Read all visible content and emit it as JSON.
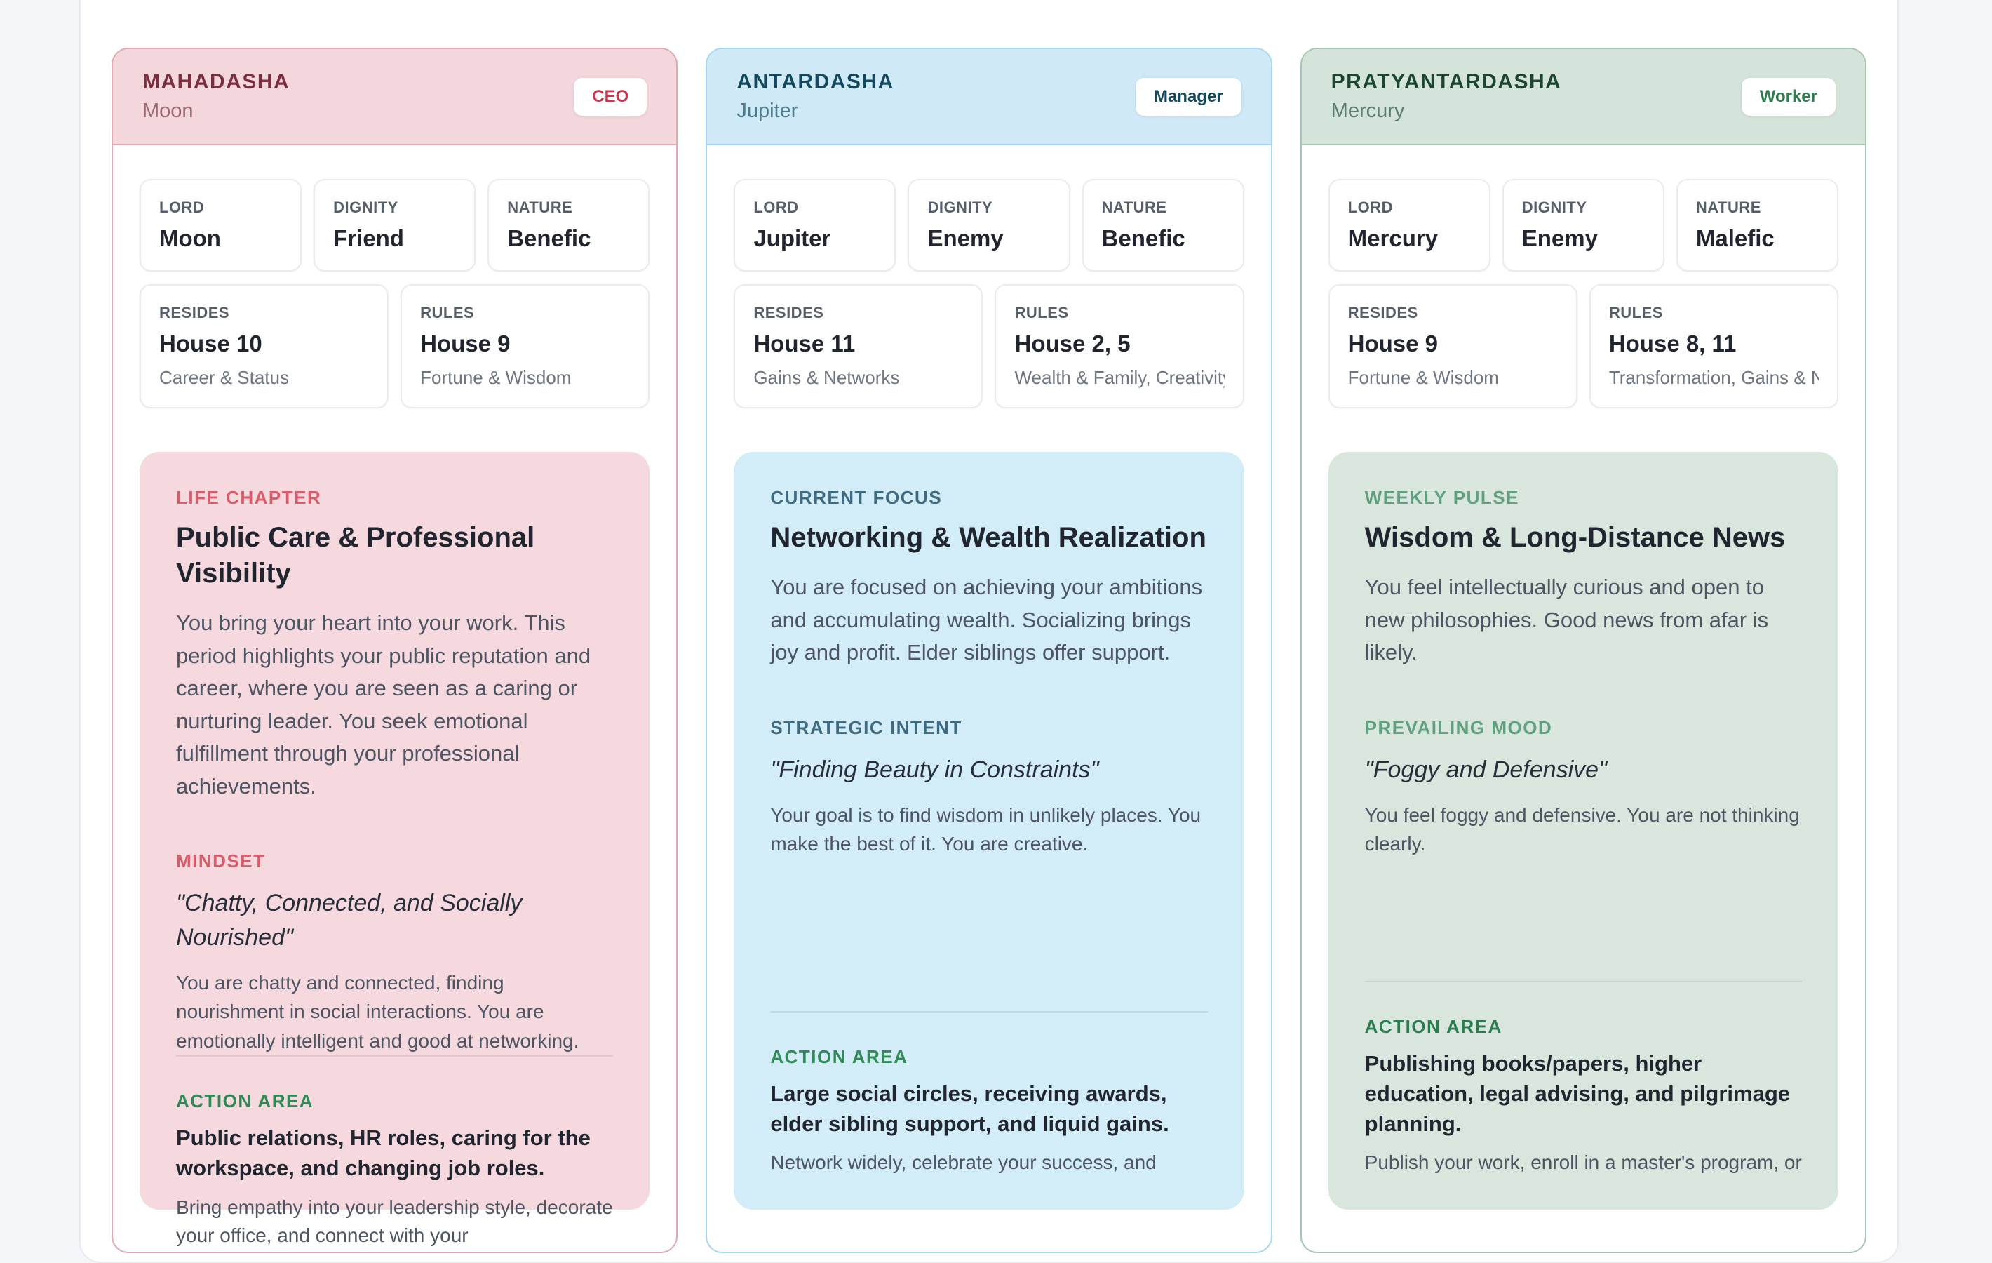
{
  "page": {
    "background": "#f3f5f8",
    "panel_background": "#ffffff"
  },
  "cards": [
    {
      "header": {
        "title": "MAHADASHA",
        "subtitle": "Moon",
        "badge": "CEO"
      },
      "info": {
        "lord": {
          "label": "LORD",
          "value": "Moon"
        },
        "dignity": {
          "label": "DIGNITY",
          "value": "Friend"
        },
        "nature": {
          "label": "NATURE",
          "value": "Benefic"
        },
        "resides": {
          "label": "RESIDES",
          "value": "House 10",
          "sub": "Career & Status"
        },
        "rules": {
          "label": "RULES",
          "value": "House 9",
          "sub": "Fortune & Wisdom"
        }
      },
      "sections": {
        "primary": {
          "label": "LIFE CHAPTER",
          "heading": "Public Care & Professional Visibility",
          "body": "You bring your heart into your work. This period highlights your public reputation and career, where you are seen as a caring or nurturing leader. You seek emotional fulfillment through your professional achievements."
        },
        "secondary": {
          "label": "MINDSET",
          "quote": "\"Chatty, Connected, and Socially Nourished\"",
          "body": "You are chatty and connected, finding nourishment in social interactions. You are emotionally intelligent and good at networking."
        },
        "action": {
          "label": "ACTION AREA",
          "heading": "Public relations, HR roles, caring for the workspace, and changing job roles.",
          "body": "Bring empathy into your leadership style, decorate your office, and connect with your"
        }
      },
      "theme": {
        "border": "#e2a9b3",
        "header_bg": "#f3d7dc",
        "panel_bg": "#f5d9de",
        "title": "#7a2e3e",
        "subtitle": "#9c6872",
        "badge": "#c43a4c",
        "label": "#d85b69",
        "action": "#2f8a55"
      }
    },
    {
      "header": {
        "title": "ANTARDASHA",
        "subtitle": "Jupiter",
        "badge": "Manager"
      },
      "info": {
        "lord": {
          "label": "LORD",
          "value": "Jupiter"
        },
        "dignity": {
          "label": "DIGNITY",
          "value": "Enemy"
        },
        "nature": {
          "label": "NATURE",
          "value": "Benefic"
        },
        "resides": {
          "label": "RESIDES",
          "value": "House 11",
          "sub": "Gains & Networks"
        },
        "rules": {
          "label": "RULES",
          "value": "House 2, 5",
          "sub": "Wealth & Family, Creativity …"
        }
      },
      "sections": {
        "primary": {
          "label": "CURRENT FOCUS",
          "heading": "Networking & Wealth Realization",
          "body": "You are focused on achieving your ambitions and accumulating wealth. Socializing brings joy and profit. Elder siblings offer support."
        },
        "secondary": {
          "label": "STRATEGIC INTENT",
          "quote": "\"Finding Beauty in Constraints\"",
          "body": "Your goal is to find wisdom in unlikely places. You make the best of it. You are creative."
        },
        "action": {
          "label": "ACTION AREA",
          "heading": "Large social circles, receiving awards, elder sibling support, and liquid gains.",
          "body": "Network widely, celebrate your success, and"
        }
      },
      "theme": {
        "border": "#a5d9ed",
        "header_bg": "#cfeaf6",
        "panel_bg": "#d2ecf8",
        "title": "#14485e",
        "subtitle": "#4d7a8e",
        "badge": "#14485e",
        "label": "#3f6b82",
        "action": "#2f8a55"
      }
    },
    {
      "header": {
        "title": "PRATYANTARDASHA",
        "subtitle": "Mercury",
        "badge": "Worker"
      },
      "info": {
        "lord": {
          "label": "LORD",
          "value": "Mercury"
        },
        "dignity": {
          "label": "DIGNITY",
          "value": "Enemy"
        },
        "nature": {
          "label": "NATURE",
          "value": "Malefic"
        },
        "resides": {
          "label": "RESIDES",
          "value": "House 9",
          "sub": "Fortune & Wisdom"
        },
        "rules": {
          "label": "RULES",
          "value": "House 8, 11",
          "sub": "Transformation, Gains & Net…"
        }
      },
      "sections": {
        "primary": {
          "label": "WEEKLY PULSE",
          "heading": "Wisdom & Long-Distance News",
          "body": "You feel intellectually curious and open to new philosophies. Good news from afar is likely."
        },
        "secondary": {
          "label": "PREVAILING MOOD",
          "quote": "\"Foggy and Defensive\"",
          "body": "You feel foggy and defensive. You are not thinking clearly."
        },
        "action": {
          "label": "ACTION AREA",
          "heading": "Publishing books/papers, higher education, legal advising, and pilgrimage planning.",
          "body": "Publish your work, enroll in a master's program, or"
        }
      },
      "theme": {
        "border": "#a8c6b4",
        "header_bg": "#d5e4db",
        "panel_bg": "#d8e6dd",
        "title": "#1d4632",
        "subtitle": "#5e7c6d",
        "badge": "#2e7d4e",
        "label": "#5fa17e",
        "action": "#2c7c4f"
      }
    }
  ]
}
